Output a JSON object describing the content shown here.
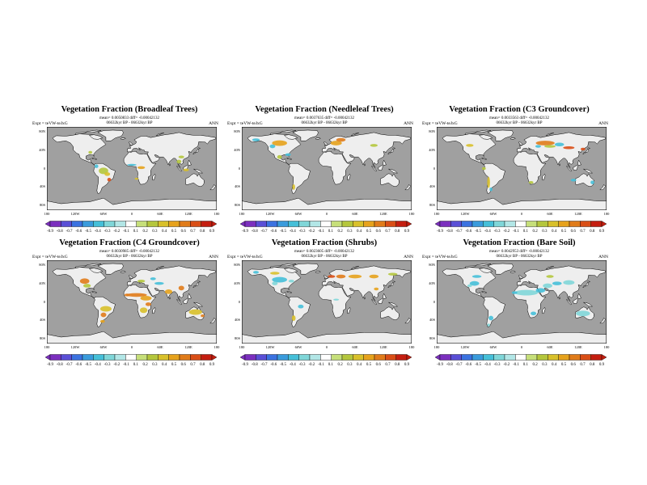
{
  "colors": {
    "ocean": "#a0a0a0",
    "land": "#eeeeee",
    "coast": "#000000",
    "palette": [
      "#7b2fbe",
      "#5a4fd6",
      "#3b72e0",
      "#3a9bdc",
      "#45bfd8",
      "#7fd6d8",
      "#b2e6e6",
      "#ffffff",
      "#c6df7a",
      "#b4c63c",
      "#d8c02a",
      "#e6a21c",
      "#e07b1a",
      "#d94e16",
      "#c41e10"
    ]
  },
  "latitude_labels": [
    "80N",
    "40N",
    "0",
    "40S",
    "80S"
  ],
  "longitude_labels": [
    "180",
    "120W",
    "60W",
    "0",
    "60E",
    "120E",
    "180"
  ],
  "panels": [
    {
      "title": "Vegetation Fraction (Broadleaf Trees)",
      "meta_line1": "mean= 0.0050833 diff= -0.00042132",
      "meta_line2": "06632kyr BP - 06632kyr BP",
      "expt": "Expt = teVW-teJxG",
      "season": "ANN",
      "colorbar_ticks": [
        "-0.9",
        "-0.8",
        "-0.7",
        "-0.6",
        "-0.5",
        "-0.4",
        "-0.3",
        "-0.2",
        "-0.1",
        "0.1",
        "0.2",
        "0.3",
        "0.4",
        "0.5",
        "0.6",
        "0.7",
        "0.8",
        "0.9"
      ]
    },
    {
      "title": "Vegetation Fraction (Needleleaf Trees)",
      "meta_line1": "mean= 0.0037635 diff= -0.00042132",
      "meta_line2": "06632kyr BP - 06632kyr BP",
      "expt": "Expt = teVW-teJxG",
      "season": "ANN",
      "colorbar_ticks": [
        "-0.9",
        "-0.8",
        "-0.7",
        "-0.6",
        "-0.5",
        "-0.4",
        "-0.3",
        "-0.2",
        "-0.1",
        "0.1",
        "0.2",
        "0.3",
        "0.4",
        "0.5",
        "0.6",
        "0.7",
        "0.8",
        "0.9"
      ]
    },
    {
      "title": "Vegetation Fraction (C3 Groundcover)",
      "meta_line1": "mean= 0.0033563 diff= -0.00042132",
      "meta_line2": "06632kyr BP - 06632kyr BP",
      "expt": "Expt = teVW-teJxG",
      "season": "ANN",
      "colorbar_ticks": [
        "-0.9",
        "-0.8",
        "-0.7",
        "-0.6",
        "-0.5",
        "-0.4",
        "-0.3",
        "-0.2",
        "-0.1",
        "0.1",
        "0.2",
        "0.3",
        "0.4",
        "0.5",
        "0.6",
        "0.7",
        "0.8",
        "0.9"
      ]
    },
    {
      "title": "Vegetation Fraction (C4 Groundcover)",
      "meta_line1": "mean= 0.0030985 diff= -0.00042132",
      "meta_line2": "06632kyr BP - 06632kyr BP",
      "expt": "Expt = teVW-teJxG",
      "season": "ANN",
      "colorbar_ticks": [
        "-0.9",
        "-0.8",
        "-0.7",
        "-0.6",
        "-0.5",
        "-0.4",
        "-0.3",
        "-0.2",
        "-0.1",
        "0.1",
        "0.2",
        "0.3",
        "0.4",
        "0.5",
        "0.6",
        "0.7",
        "0.8",
        "0.9"
      ]
    },
    {
      "title": "Vegetation Fraction (Shrubs)",
      "meta_line1": "mean= 0.0023605 diff= -0.00042132",
      "meta_line2": "06632kyr BP - 06632kyr BP",
      "expt": "Expt = teVW-teJxG",
      "season": "ANN",
      "colorbar_ticks": [
        "-0.9",
        "-0.8",
        "-0.7",
        "-0.6",
        "-0.5",
        "-0.4",
        "-0.3",
        "-0.2",
        "-0.1",
        "0.1",
        "0.2",
        "0.3",
        "0.4",
        "0.5",
        "0.6",
        "0.7",
        "0.8",
        "0.9"
      ]
    },
    {
      "title": "Vegetation Fraction (Bare Soil)",
      "meta_line1": "mean= 0.0042953 diff= -0.00042132",
      "meta_line2": "06632kyr BP - 06632kyr BP",
      "expt": "Expt = teVW-teJxG",
      "season": "ANN",
      "colorbar_ticks": [
        "-0.9",
        "-0.8",
        "-0.7",
        "-0.6",
        "-0.5",
        "-0.4",
        "-0.3",
        "-0.2",
        "-0.1",
        "0.1",
        "0.2",
        "0.3",
        "0.4",
        "0.5",
        "0.6",
        "0.7",
        "0.8",
        "0.9"
      ]
    }
  ]
}
